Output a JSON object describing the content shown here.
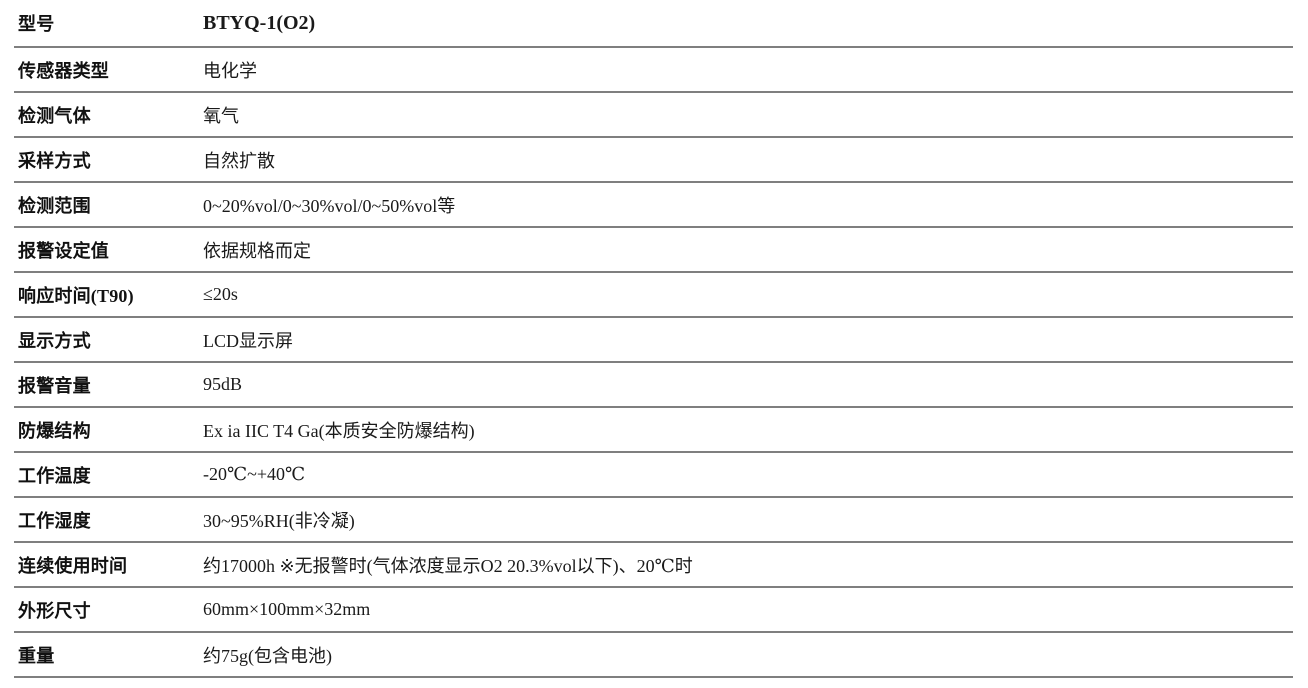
{
  "table": {
    "name": "product-specification-table",
    "line_color": "#7f7f7f",
    "label_text_color": "#111111",
    "value_text_color": "#1a1a1a",
    "rows": [
      {
        "label": "型号",
        "value": "BTYQ-1(O2)"
      },
      {
        "label": "传感器类型",
        "value": "电化学"
      },
      {
        "label": "检测气体",
        "value": "氧气"
      },
      {
        "label": "采样方式",
        "value": "自然扩散"
      },
      {
        "label": "检测范围",
        "value": "0~20%vol/0~30%vol/0~50%vol等"
      },
      {
        "label": "报警设定值",
        "value": "依据规格而定"
      },
      {
        "label": "响应时间(T90)",
        "value": "≤20s"
      },
      {
        "label": "显示方式",
        "value": "LCD显示屏"
      },
      {
        "label": "报警音量",
        "value": "95dB"
      },
      {
        "label": "防爆结构",
        "value": "Ex ia IIC T4 Ga(本质安全防爆结构)"
      },
      {
        "label": "工作温度",
        "value": "-20℃~+40℃"
      },
      {
        "label": "工作湿度",
        "value": "30~95%RH(非冷凝)"
      },
      {
        "label": "连续使用时间",
        "value": "约17000h ※无报警时(气体浓度显示O2 20.3%vol以下)、20℃时"
      },
      {
        "label": "外形尺寸",
        "value": "60mm×100mm×32mm"
      },
      {
        "label": "重量",
        "value": "约75g(包含电池)"
      }
    ]
  }
}
